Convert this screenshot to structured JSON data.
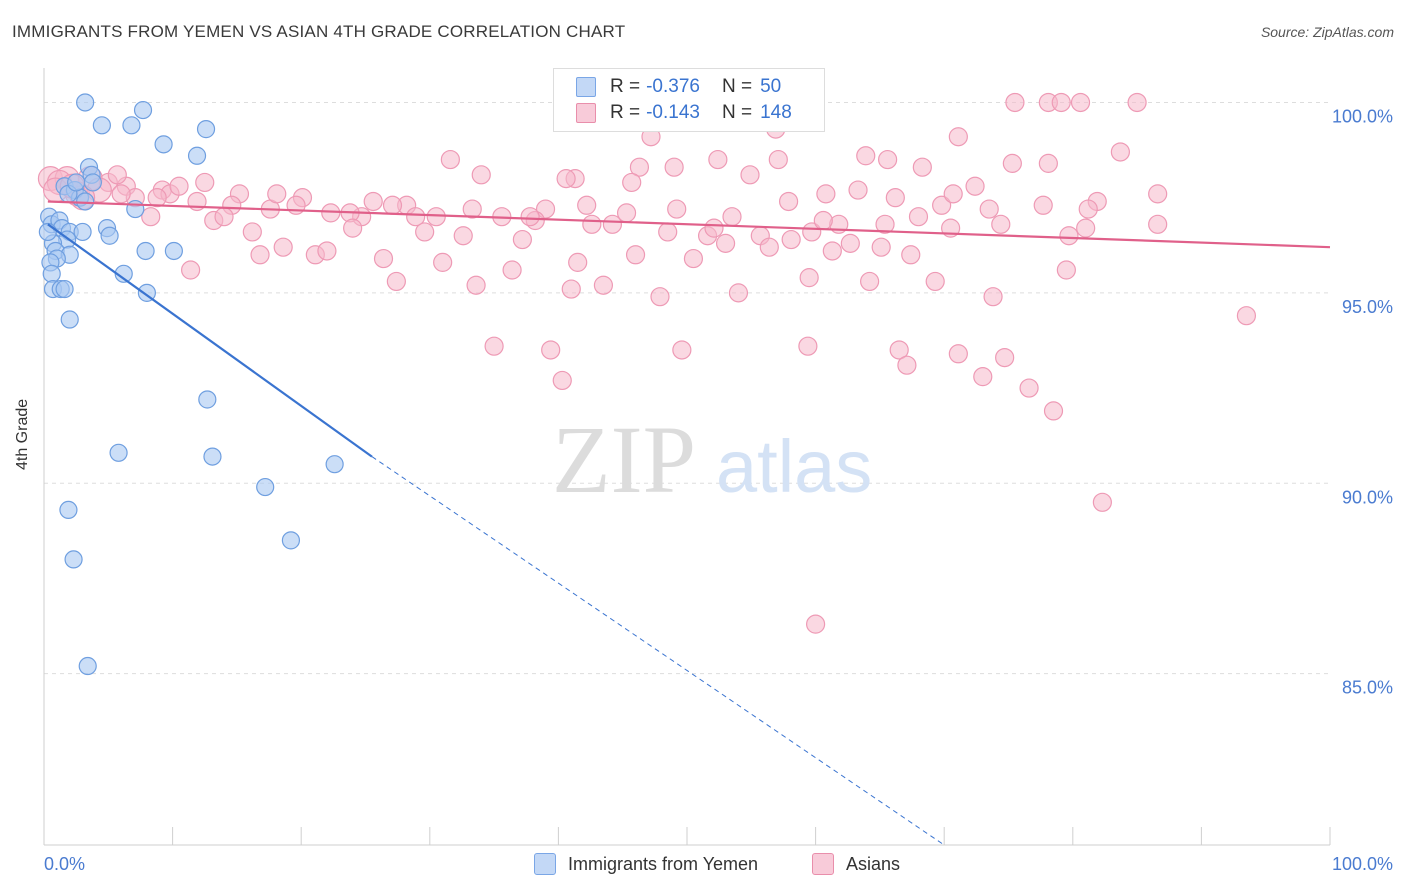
{
  "title": "IMMIGRANTS FROM YEMEN VS ASIAN 4TH GRADE CORRELATION CHART",
  "source": "Source: ZipAtlas.com",
  "watermark": {
    "zip": "ZIP",
    "atlas": "atlas"
  },
  "legend": {
    "rows": [
      {
        "r_label": "R =",
        "r_value": "-0.376",
        "n_label": "N =",
        "n_value": "50",
        "color": "#a9c8f2"
      },
      {
        "r_label": "R =",
        "r_value": "-0.143",
        "n_label": "N =",
        "n_value": "148",
        "color": "#f5b8cb"
      }
    ]
  },
  "bottom_legend": [
    {
      "label": "Immigrants from Yemen",
      "color": "#a9c8f2"
    },
    {
      "label": "Asians",
      "color": "#f5b8cb"
    }
  ],
  "chart_data": {
    "type": "scatter",
    "title": "IMMIGRANTS FROM YEMEN VS ASIAN 4TH GRADE CORRELATION CHART",
    "xlabel": "",
    "ylabel": "4th Grade",
    "xlim": [
      0,
      100
    ],
    "ylim": [
      80.5,
      100.8
    ],
    "x_tick_labels": [
      "0.0%",
      "100.0%"
    ],
    "y_ticks": [
      85,
      90,
      95,
      100
    ],
    "y_tick_labels": [
      "85.0%",
      "90.0%",
      "95.0%",
      "100.0%"
    ],
    "grid": true,
    "series": [
      {
        "name": "Immigrants from Yemen",
        "color": "#3a74d0",
        "fill": "#a9c8f2",
        "trend": {
          "x0": 0.3,
          "y0": 96.8,
          "x1": 25.5,
          "y1": 90.7,
          "x_dash_end": 70,
          "y_dash_end": 80.5
        },
        "points": [
          [
            3.2,
            100.0
          ],
          [
            7.7,
            99.8
          ],
          [
            4.5,
            99.4
          ],
          [
            6.8,
            99.4
          ],
          [
            12.6,
            99.3
          ],
          [
            9.3,
            98.9
          ],
          [
            11.9,
            98.6
          ],
          [
            3.5,
            98.3
          ],
          [
            3.7,
            98.1
          ],
          [
            3.8,
            97.9
          ],
          [
            1.6,
            97.8
          ],
          [
            2.4,
            97.7
          ],
          [
            2.8,
            97.5
          ],
          [
            1.9,
            97.6
          ],
          [
            3.2,
            97.4
          ],
          [
            7.1,
            97.2
          ],
          [
            0.4,
            97.0
          ],
          [
            0.6,
            96.8
          ],
          [
            1.2,
            96.9
          ],
          [
            1.4,
            96.7
          ],
          [
            2.0,
            96.6
          ],
          [
            1.8,
            96.4
          ],
          [
            3.0,
            96.6
          ],
          [
            0.7,
            96.3
          ],
          [
            4.9,
            96.7
          ],
          [
            5.1,
            96.5
          ],
          [
            0.9,
            96.1
          ],
          [
            2.0,
            96.0
          ],
          [
            1.0,
            95.9
          ],
          [
            7.9,
            96.1
          ],
          [
            10.1,
            96.1
          ],
          [
            0.5,
            95.8
          ],
          [
            0.6,
            95.5
          ],
          [
            6.2,
            95.5
          ],
          [
            0.7,
            95.1
          ],
          [
            1.3,
            95.1
          ],
          [
            1.6,
            95.1
          ],
          [
            8.0,
            95.0
          ],
          [
            2.0,
            94.3
          ],
          [
            12.7,
            92.2
          ],
          [
            5.8,
            90.8
          ],
          [
            13.1,
            90.7
          ],
          [
            22.6,
            90.5
          ],
          [
            17.2,
            89.9
          ],
          [
            1.9,
            89.3
          ],
          [
            19.2,
            88.5
          ],
          [
            2.3,
            88.0
          ],
          [
            3.4,
            85.2
          ],
          [
            0.3,
            96.6
          ],
          [
            2.5,
            97.9
          ]
        ]
      },
      {
        "name": "Asians",
        "color": "#e0608a",
        "fill": "#f5b8cb",
        "trend": {
          "x0": 0.3,
          "y0": 97.4,
          "x1": 100,
          "y1": 96.2
        },
        "points": [
          [
            75.5,
            100.0
          ],
          [
            78.1,
            100.0
          ],
          [
            79.1,
            100.0
          ],
          [
            80.6,
            100.0
          ],
          [
            85.0,
            100.0
          ],
          [
            56.9,
            99.3
          ],
          [
            47.2,
            99.1
          ],
          [
            71.1,
            99.1
          ],
          [
            63.9,
            98.6
          ],
          [
            65.6,
            98.5
          ],
          [
            78.1,
            98.4
          ],
          [
            31.6,
            98.5
          ],
          [
            52.4,
            98.5
          ],
          [
            57.1,
            98.5
          ],
          [
            68.3,
            98.3
          ],
          [
            34.0,
            98.1
          ],
          [
            46.3,
            98.3
          ],
          [
            49.0,
            98.3
          ],
          [
            41.3,
            98.0
          ],
          [
            54.9,
            98.1
          ],
          [
            45.7,
            97.9
          ],
          [
            40.6,
            98.0
          ],
          [
            0.5,
            98.0
          ],
          [
            1.8,
            98.0
          ],
          [
            3.6,
            98.0
          ],
          [
            5.0,
            97.9
          ],
          [
            6.4,
            97.8
          ],
          [
            9.2,
            97.7
          ],
          [
            15.2,
            97.6
          ],
          [
            20.1,
            97.5
          ],
          [
            25.6,
            97.4
          ],
          [
            28.2,
            97.3
          ],
          [
            33.3,
            97.2
          ],
          [
            39.0,
            97.2
          ],
          [
            42.2,
            97.3
          ],
          [
            49.2,
            97.2
          ],
          [
            53.5,
            97.0
          ],
          [
            57.9,
            97.4
          ],
          [
            60.8,
            97.6
          ],
          [
            63.3,
            97.7
          ],
          [
            66.2,
            97.5
          ],
          [
            69.8,
            97.3
          ],
          [
            73.5,
            97.2
          ],
          [
            77.7,
            97.3
          ],
          [
            81.9,
            97.4
          ],
          [
            86.6,
            97.6
          ],
          [
            2.6,
            97.6
          ],
          [
            4.3,
            97.7
          ],
          [
            7.1,
            97.5
          ],
          [
            9.8,
            97.6
          ],
          [
            11.9,
            97.4
          ],
          [
            14.6,
            97.3
          ],
          [
            17.6,
            97.2
          ],
          [
            22.3,
            97.1
          ],
          [
            24.7,
            97.0
          ],
          [
            27.1,
            97.3
          ],
          [
            30.5,
            97.0
          ],
          [
            35.6,
            97.0
          ],
          [
            38.2,
            96.9
          ],
          [
            44.2,
            96.8
          ],
          [
            48.5,
            96.6
          ],
          [
            51.6,
            96.5
          ],
          [
            55.7,
            96.5
          ],
          [
            59.7,
            96.6
          ],
          [
            62.7,
            96.3
          ],
          [
            65.1,
            96.2
          ],
          [
            70.5,
            96.7
          ],
          [
            74.4,
            96.8
          ],
          [
            79.7,
            96.5
          ],
          [
            8.3,
            97.0
          ],
          [
            13.2,
            96.9
          ],
          [
            16.2,
            96.6
          ],
          [
            18.6,
            96.2
          ],
          [
            21.1,
            96.0
          ],
          [
            26.4,
            95.9
          ],
          [
            31.0,
            95.8
          ],
          [
            36.4,
            95.6
          ],
          [
            41.5,
            95.8
          ],
          [
            46.0,
            96.0
          ],
          [
            50.5,
            95.9
          ],
          [
            56.4,
            96.2
          ],
          [
            61.3,
            96.1
          ],
          [
            67.4,
            96.0
          ],
          [
            11.4,
            95.6
          ],
          [
            16.8,
            96.0
          ],
          [
            22.0,
            96.1
          ],
          [
            27.4,
            95.3
          ],
          [
            33.6,
            95.2
          ],
          [
            41.0,
            95.1
          ],
          [
            43.5,
            95.2
          ],
          [
            47.9,
            94.9
          ],
          [
            54.0,
            95.0
          ],
          [
            59.5,
            95.4
          ],
          [
            64.2,
            95.3
          ],
          [
            69.3,
            95.3
          ],
          [
            73.8,
            94.9
          ],
          [
            79.5,
            95.6
          ],
          [
            35.0,
            93.6
          ],
          [
            39.4,
            93.5
          ],
          [
            49.6,
            93.5
          ],
          [
            59.4,
            93.6
          ],
          [
            66.5,
            93.5
          ],
          [
            71.1,
            93.4
          ],
          [
            74.7,
            93.3
          ],
          [
            40.3,
            92.7
          ],
          [
            67.1,
            93.1
          ],
          [
            73.0,
            92.8
          ],
          [
            76.6,
            92.5
          ],
          [
            78.5,
            91.9
          ],
          [
            93.5,
            94.4
          ],
          [
            83.7,
            98.7
          ],
          [
            86.6,
            96.8
          ],
          [
            75.3,
            98.4
          ],
          [
            81.2,
            97.2
          ],
          [
            70.7,
            97.6
          ],
          [
            65.4,
            96.8
          ],
          [
            82.3,
            89.5
          ],
          [
            60.0,
            86.3
          ],
          [
            1.2,
            97.9
          ],
          [
            3.0,
            97.5
          ],
          [
            5.7,
            98.1
          ],
          [
            8.8,
            97.5
          ],
          [
            10.5,
            97.8
          ],
          [
            12.5,
            97.9
          ],
          [
            18.1,
            97.6
          ],
          [
            19.6,
            97.3
          ],
          [
            23.8,
            97.1
          ],
          [
            28.9,
            97.0
          ],
          [
            32.6,
            96.5
          ],
          [
            37.2,
            96.4
          ],
          [
            42.6,
            96.8
          ],
          [
            45.3,
            97.1
          ],
          [
            52.1,
            96.7
          ],
          [
            58.1,
            96.4
          ],
          [
            61.8,
            96.8
          ],
          [
            72.4,
            97.8
          ],
          [
            0.9,
            97.7
          ],
          [
            2.2,
            97.8
          ],
          [
            6.0,
            97.6
          ],
          [
            14.0,
            97.0
          ],
          [
            24.0,
            96.7
          ],
          [
            29.6,
            96.6
          ],
          [
            37.8,
            97.0
          ],
          [
            53.0,
            96.3
          ],
          [
            60.6,
            96.9
          ],
          [
            68.0,
            97.0
          ],
          [
            81.0,
            96.7
          ]
        ]
      }
    ]
  }
}
